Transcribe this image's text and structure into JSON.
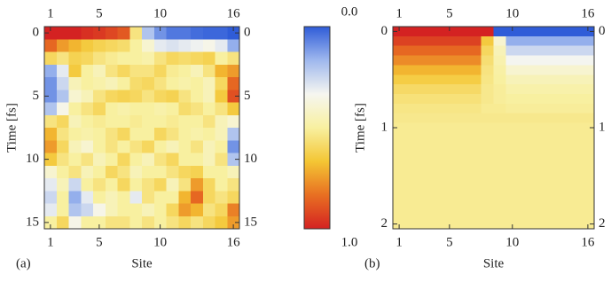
{
  "chart_data": [
    {
      "type": "heatmap",
      "panel_label": "(a)",
      "xlabel": "Site",
      "ylabel": "Time [fs]",
      "x": [
        1,
        2,
        3,
        4,
        5,
        6,
        7,
        8,
        9,
        10,
        11,
        12,
        13,
        14,
        15,
        16
      ],
      "y": [
        0,
        1,
        2,
        3,
        4,
        5,
        6,
        7,
        8,
        9,
        10,
        11,
        12,
        13,
        14,
        15
      ],
      "xlim": [
        0.5,
        16.5
      ],
      "ylim": [
        -0.5,
        15.5
      ],
      "xticks": [
        1,
        5,
        10,
        16
      ],
      "yticks": [
        0,
        5,
        10,
        15
      ],
      "zlim": [
        0,
        1
      ],
      "colormap": [
        "#2f5cd8",
        "#9fb8ee",
        "#f6f6f0",
        "#f8f0a0",
        "#f4c634",
        "#e86f22",
        "#d42222"
      ],
      "colorbar": {
        "ticks": [
          {
            "value": 0,
            "label": "0.0"
          },
          {
            "value": 1,
            "label": "1.0"
          }
        ]
      },
      "z": [
        [
          1,
          1,
          1,
          0.97,
          0.95,
          0.92,
          0.88,
          0.55,
          0.2,
          0.1,
          0.05,
          0.05,
          0.03,
          0.02,
          0.02,
          0
        ],
        [
          0.85,
          0.75,
          0.7,
          0.65,
          0.62,
          0.6,
          0.58,
          0.5,
          0.4,
          0.3,
          0.28,
          0.3,
          0.32,
          0.35,
          0.3,
          0.15
        ],
        [
          0.6,
          0.55,
          0.62,
          0.6,
          0.55,
          0.52,
          0.5,
          0.5,
          0.48,
          0.55,
          0.6,
          0.58,
          0.6,
          0.62,
          0.5,
          0.55
        ],
        [
          0.15,
          0.3,
          0.65,
          0.5,
          0.45,
          0.55,
          0.6,
          0.55,
          0.55,
          0.6,
          0.52,
          0.5,
          0.45,
          0.55,
          0.7,
          0.75
        ],
        [
          0.1,
          0.25,
          0.45,
          0.5,
          0.48,
          0.45,
          0.5,
          0.58,
          0.6,
          0.55,
          0.5,
          0.48,
          0.5,
          0.45,
          0.6,
          0.85
        ],
        [
          0.1,
          0.2,
          0.4,
          0.45,
          0.55,
          0.6,
          0.62,
          0.6,
          0.55,
          0.6,
          0.62,
          0.55,
          0.5,
          0.45,
          0.65,
          0.9
        ],
        [
          0.2,
          0.35,
          0.5,
          0.55,
          0.6,
          0.5,
          0.48,
          0.5,
          0.5,
          0.48,
          0.5,
          0.58,
          0.55,
          0.5,
          0.55,
          0.65
        ],
        [
          0.55,
          0.6,
          0.45,
          0.5,
          0.52,
          0.5,
          0.5,
          0.52,
          0.5,
          0.5,
          0.52,
          0.5,
          0.5,
          0.55,
          0.45,
          0.4
        ],
        [
          0.7,
          0.55,
          0.5,
          0.48,
          0.5,
          0.55,
          0.6,
          0.5,
          0.5,
          0.6,
          0.55,
          0.5,
          0.48,
          0.5,
          0.45,
          0.2
        ],
        [
          0.75,
          0.6,
          0.45,
          0.4,
          0.5,
          0.55,
          0.5,
          0.55,
          0.6,
          0.5,
          0.45,
          0.5,
          0.55,
          0.45,
          0.5,
          0.1
        ],
        [
          0.65,
          0.55,
          0.5,
          0.55,
          0.45,
          0.5,
          0.6,
          0.5,
          0.45,
          0.55,
          0.6,
          0.5,
          0.5,
          0.45,
          0.55,
          0.2
        ],
        [
          0.4,
          0.5,
          0.55,
          0.45,
          0.5,
          0.6,
          0.55,
          0.45,
          0.5,
          0.5,
          0.55,
          0.6,
          0.62,
          0.5,
          0.5,
          0.45
        ],
        [
          0.3,
          0.45,
          0.25,
          0.5,
          0.55,
          0.5,
          0.6,
          0.5,
          0.55,
          0.6,
          0.45,
          0.55,
          0.75,
          0.6,
          0.5,
          0.55
        ],
        [
          0.25,
          0.5,
          0.15,
          0.3,
          0.5,
          0.45,
          0.5,
          0.3,
          0.55,
          0.5,
          0.5,
          0.7,
          0.85,
          0.6,
          0.55,
          0.6
        ],
        [
          0.3,
          0.5,
          0.2,
          0.25,
          0.35,
          0.45,
          0.5,
          0.5,
          0.45,
          0.5,
          0.6,
          0.75,
          0.7,
          0.55,
          0.6,
          0.8
        ],
        [
          0.5,
          0.6,
          0.35,
          0.5,
          0.5,
          0.55,
          0.55,
          0.5,
          0.55,
          0.5,
          0.55,
          0.6,
          0.55,
          0.6,
          0.65,
          0.75
        ]
      ]
    },
    {
      "type": "heatmap",
      "panel_label": "(b)",
      "xlabel": "Site",
      "ylabel": "Time [fs]",
      "x": [
        1,
        2,
        3,
        4,
        5,
        6,
        7,
        8,
        9,
        10,
        11,
        12,
        13,
        14,
        15,
        16
      ],
      "y": [
        0,
        0.1,
        0.2,
        0.3,
        0.4,
        0.5,
        0.6,
        0.7,
        0.8,
        0.9,
        1,
        1.1,
        1.2,
        1.3,
        1.4,
        1.5,
        1.6,
        1.7,
        1.8,
        1.9,
        2
      ],
      "xlim": [
        0.5,
        16.5
      ],
      "ylim": [
        -0.05,
        2.05
      ],
      "xticks": [
        1,
        5,
        10,
        16
      ],
      "yticks": [
        0,
        1,
        2
      ],
      "zlim": [
        0,
        1
      ],
      "colormap": [
        "#2f5cd8",
        "#9fb8ee",
        "#f6f6f0",
        "#f8f0a0",
        "#f4c634",
        "#e86f22",
        "#d42222"
      ],
      "z": [
        [
          1,
          1,
          1,
          1,
          1,
          1,
          1,
          1,
          0,
          0,
          0,
          0,
          0,
          0,
          0,
          0
        ],
        [
          0.93,
          0.93,
          0.93,
          0.93,
          0.93,
          0.93,
          0.93,
          0.65,
          0.4,
          0.15,
          0.15,
          0.15,
          0.15,
          0.15,
          0.15,
          0.15
        ],
        [
          0.85,
          0.85,
          0.85,
          0.85,
          0.85,
          0.85,
          0.85,
          0.6,
          0.45,
          0.25,
          0.25,
          0.25,
          0.25,
          0.25,
          0.25,
          0.25
        ],
        [
          0.78,
          0.78,
          0.78,
          0.78,
          0.78,
          0.78,
          0.78,
          0.57,
          0.47,
          0.33,
          0.33,
          0.33,
          0.33,
          0.33,
          0.33,
          0.33
        ],
        [
          0.7,
          0.7,
          0.7,
          0.7,
          0.7,
          0.7,
          0.7,
          0.55,
          0.49,
          0.4,
          0.4,
          0.4,
          0.4,
          0.4,
          0.4,
          0.4
        ],
        [
          0.64,
          0.64,
          0.64,
          0.64,
          0.64,
          0.64,
          0.64,
          0.54,
          0.5,
          0.45,
          0.45,
          0.45,
          0.45,
          0.45,
          0.45,
          0.45
        ],
        [
          0.59,
          0.59,
          0.59,
          0.59,
          0.59,
          0.59,
          0.59,
          0.53,
          0.51,
          0.48,
          0.48,
          0.48,
          0.48,
          0.48,
          0.48,
          0.48
        ],
        [
          0.56,
          0.56,
          0.56,
          0.56,
          0.56,
          0.56,
          0.56,
          0.53,
          0.51,
          0.5,
          0.5,
          0.5,
          0.5,
          0.5,
          0.5,
          0.5
        ],
        [
          0.54,
          0.54,
          0.54,
          0.54,
          0.54,
          0.54,
          0.54,
          0.52,
          0.52,
          0.51,
          0.51,
          0.51,
          0.51,
          0.51,
          0.51,
          0.51
        ],
        [
          0.53,
          0.53,
          0.53,
          0.53,
          0.53,
          0.53,
          0.53,
          0.53,
          0.53,
          0.53,
          0.53,
          0.53,
          0.53,
          0.53,
          0.53,
          0.53
        ],
        [
          0.52,
          0.52,
          0.52,
          0.52,
          0.52,
          0.52,
          0.52,
          0.52,
          0.52,
          0.52,
          0.52,
          0.52,
          0.52,
          0.52,
          0.52,
          0.52
        ],
        [
          0.52,
          0.52,
          0.52,
          0.52,
          0.52,
          0.52,
          0.52,
          0.52,
          0.52,
          0.52,
          0.52,
          0.52,
          0.52,
          0.52,
          0.52,
          0.52
        ],
        [
          0.52,
          0.52,
          0.52,
          0.52,
          0.52,
          0.52,
          0.52,
          0.52,
          0.52,
          0.52,
          0.52,
          0.52,
          0.52,
          0.52,
          0.52,
          0.52
        ],
        [
          0.52,
          0.52,
          0.52,
          0.52,
          0.52,
          0.52,
          0.52,
          0.52,
          0.52,
          0.52,
          0.52,
          0.52,
          0.52,
          0.52,
          0.52,
          0.52
        ],
        [
          0.52,
          0.52,
          0.52,
          0.52,
          0.52,
          0.52,
          0.52,
          0.52,
          0.52,
          0.52,
          0.52,
          0.52,
          0.52,
          0.52,
          0.52,
          0.52
        ],
        [
          0.52,
          0.52,
          0.52,
          0.52,
          0.52,
          0.52,
          0.52,
          0.52,
          0.52,
          0.52,
          0.52,
          0.52,
          0.52,
          0.52,
          0.52,
          0.52
        ],
        [
          0.52,
          0.52,
          0.52,
          0.52,
          0.52,
          0.52,
          0.52,
          0.52,
          0.52,
          0.52,
          0.52,
          0.52,
          0.52,
          0.52,
          0.52,
          0.52
        ],
        [
          0.52,
          0.52,
          0.52,
          0.52,
          0.52,
          0.52,
          0.52,
          0.52,
          0.52,
          0.52,
          0.52,
          0.52,
          0.52,
          0.52,
          0.52,
          0.52
        ],
        [
          0.52,
          0.52,
          0.52,
          0.52,
          0.52,
          0.52,
          0.52,
          0.52,
          0.52,
          0.52,
          0.52,
          0.52,
          0.52,
          0.52,
          0.52,
          0.52
        ],
        [
          0.52,
          0.52,
          0.52,
          0.52,
          0.52,
          0.52,
          0.52,
          0.52,
          0.52,
          0.52,
          0.52,
          0.52,
          0.52,
          0.52,
          0.52,
          0.52
        ],
        [
          0.52,
          0.52,
          0.52,
          0.52,
          0.52,
          0.52,
          0.52,
          0.52,
          0.52,
          0.52,
          0.52,
          0.52,
          0.52,
          0.52,
          0.52,
          0.52
        ]
      ]
    }
  ]
}
